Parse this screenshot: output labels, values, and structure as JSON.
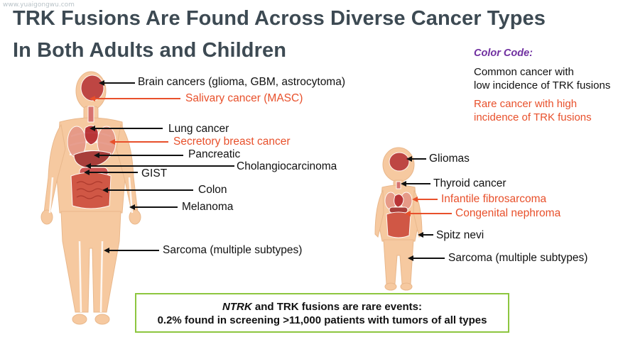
{
  "watermark": "www.yuaigongwu.com",
  "title": {
    "line1": "TRK Fusions Are Found Across Diverse Cancer Types",
    "line2": "In Both Adults and Children"
  },
  "legend": {
    "heading": "Color Code:",
    "common_line1": "Common cancer with",
    "common_line2": "low incidence of TRK fusions",
    "rare_line1": "Rare cancer with high",
    "rare_line2": "incidence of TRK fusions"
  },
  "colors": {
    "common": "#111111",
    "rare": "#e8502b",
    "legend_heading": "#7030a0",
    "note_border": "#8dc63f"
  },
  "adult_labels": {
    "brain": "Brain cancers (glioma, GBM, astrocytoma)",
    "salivary": "Salivary cancer (MASC)",
    "lung": "Lung cancer",
    "breast": "Secretory breast cancer",
    "pancreatic": "Pancreatic",
    "cholangio": "Cholangiocarcinoma",
    "gist": "GIST",
    "colon": "Colon",
    "melanoma": "Melanoma",
    "sarcoma": "Sarcoma (multiple subtypes)"
  },
  "child_labels": {
    "gliomas": "Gliomas",
    "thyroid": "Thyroid cancer",
    "fibrosarcoma": "Infantile fibrosarcoma",
    "nephroma": "Congenital nephroma",
    "spitz": "Spitz nevi",
    "sarcoma": "Sarcoma (multiple subtypes)"
  },
  "note": {
    "gene": "NTRK",
    "line1_rest": " and TRK fusions are rare events:",
    "line2": "0.2% found in screening >11,000 patients with tumors of all types"
  }
}
